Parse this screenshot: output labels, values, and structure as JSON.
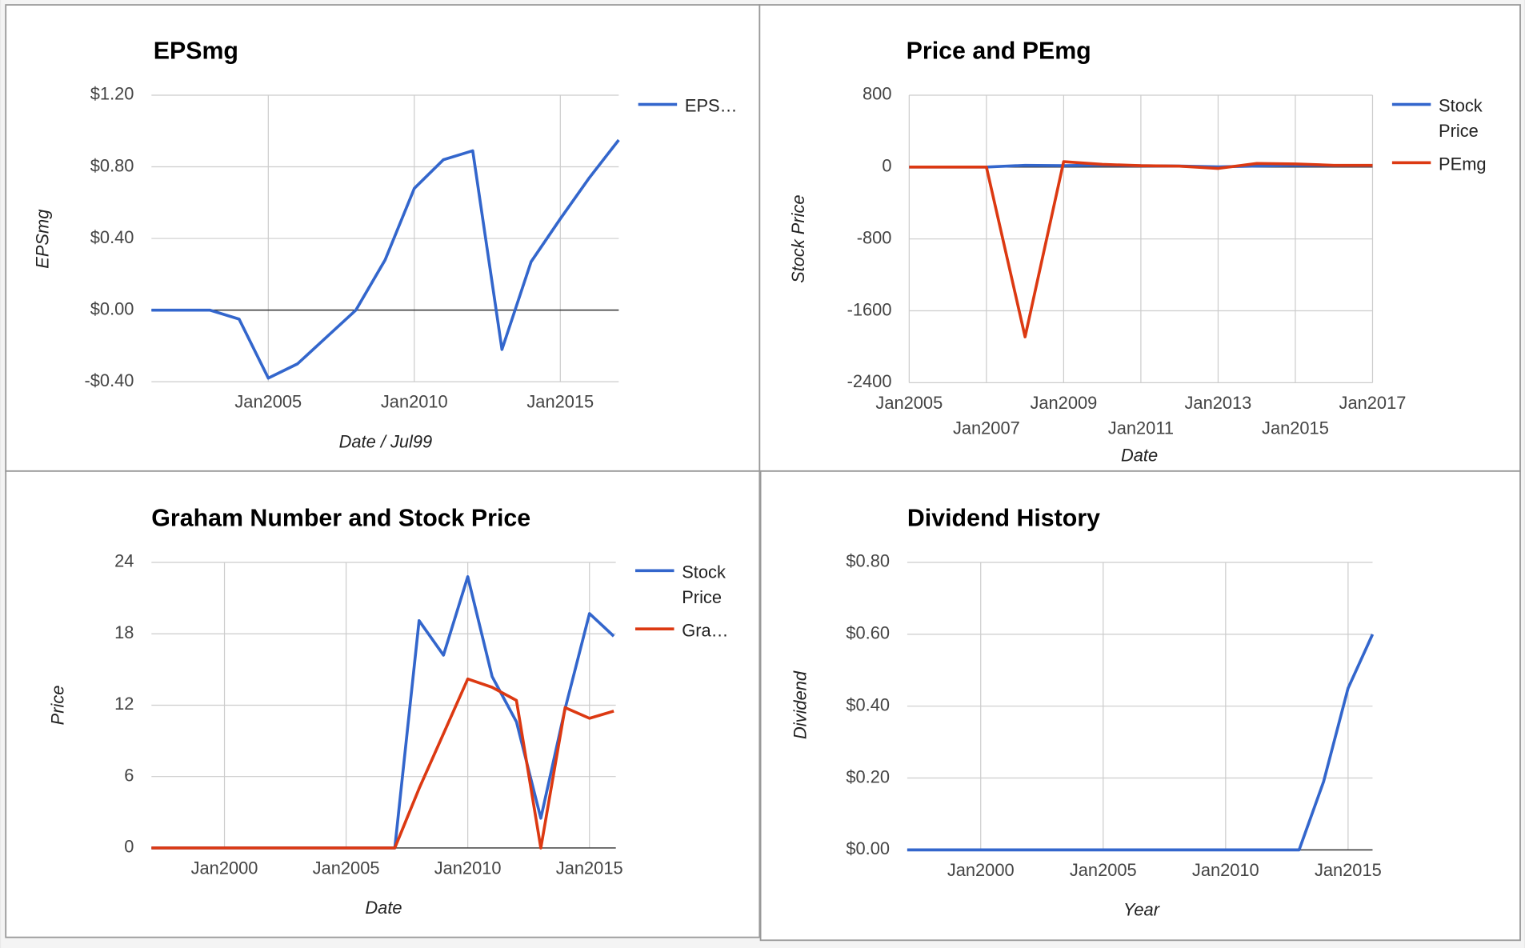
{
  "chart_data": [
    {
      "type": "line",
      "title": "EPSmg",
      "xlabel": "Date / Jul99",
      "ylabel": "EPSmg",
      "x": [
        "2001-01",
        "2002-01",
        "2003-01",
        "2004-01",
        "2005-01",
        "2006-01",
        "2007-01",
        "2008-01",
        "2009-01",
        "2010-01",
        "2011-01",
        "2012-01",
        "2013-01",
        "2014-01",
        "2015-01",
        "2016-01",
        "2017-01"
      ],
      "series": [
        {
          "name": "EPS…",
          "color": "#3366cc",
          "values": [
            0,
            0,
            0,
            -0.05,
            -0.38,
            -0.3,
            -0.15,
            0,
            0.28,
            0.68,
            0.84,
            0.89,
            -0.22,
            0.27,
            0.51,
            0.74,
            0.95
          ]
        }
      ],
      "xlim": [
        "2001-01",
        "2017-01"
      ],
      "xticks": [
        {
          "value": "2005-01",
          "label": "Jan2005"
        },
        {
          "value": "2010-01",
          "label": "Jan2010"
        },
        {
          "value": "2015-01",
          "label": "Jan2015"
        }
      ],
      "ylim": [
        -0.4,
        1.2
      ],
      "yticks": [
        {
          "value": -0.4,
          "label": "-$0.40"
        },
        {
          "value": 0,
          "label": "$0.00"
        },
        {
          "value": 0.4,
          "label": "$0.40"
        },
        {
          "value": 0.8,
          "label": "$0.80"
        },
        {
          "value": 1.2,
          "label": "$1.20"
        }
      ],
      "grid": true,
      "legend": "right"
    },
    {
      "type": "line",
      "title": "Price and PEmg",
      "xlabel": "Date",
      "ylabel": "Stock Price",
      "x": [
        "2005-01",
        "2006-01",
        "2007-01",
        "2008-01",
        "2009-01",
        "2010-01",
        "2011-01",
        "2012-01",
        "2013-01",
        "2014-01",
        "2015-01",
        "2016-01",
        "2017-01"
      ],
      "series": [
        {
          "name": "Stock Price",
          "color": "#3366cc",
          "values": [
            0,
            0,
            0,
            19.1,
            16.2,
            22.8,
            14.4,
            10.6,
            2.5,
            11.7,
            19.7,
            17.8,
            17.8
          ]
        },
        {
          "name": "PEmg",
          "color": "#dc3912",
          "values": [
            0,
            0,
            0,
            -1890,
            60,
            30,
            15,
            10,
            -15,
            40,
            35,
            20,
            20
          ]
        }
      ],
      "xlim": [
        "2005-01",
        "2017-01"
      ],
      "xticks": [
        {
          "value": "2005-01",
          "label": "Jan2005"
        },
        {
          "value": "2007-01",
          "label": "Jan2007"
        },
        {
          "value": "2009-01",
          "label": "Jan2009"
        },
        {
          "value": "2011-01",
          "label": "Jan2011"
        },
        {
          "value": "2013-01",
          "label": "Jan2013"
        },
        {
          "value": "2015-01",
          "label": "Jan2015"
        },
        {
          "value": "2017-01",
          "label": "Jan2017"
        }
      ],
      "ylim": [
        -2400,
        800
      ],
      "yticks": [
        -2400,
        -1600,
        -800,
        0,
        800
      ],
      "grid": true,
      "legend": "right"
    },
    {
      "type": "line",
      "title": "Graham Number and Stock Price",
      "xlabel": "Date",
      "ylabel": "Price",
      "x": [
        "1997-01",
        "1998-01",
        "1999-01",
        "2000-01",
        "2001-01",
        "2002-01",
        "2003-01",
        "2004-01",
        "2005-01",
        "2006-01",
        "2007-01",
        "2008-01",
        "2009-01",
        "2010-01",
        "2011-01",
        "2012-01",
        "2013-01",
        "2014-01",
        "2015-01",
        "2016-01"
      ],
      "series": [
        {
          "name": "Stock Price",
          "color": "#3366cc",
          "values": [
            0,
            0,
            0,
            0,
            0,
            0,
            0,
            0,
            0,
            0,
            0,
            19.1,
            16.2,
            22.8,
            14.4,
            10.6,
            2.5,
            11.7,
            19.7,
            17.8
          ]
        },
        {
          "name": "Gra…",
          "color": "#dc3912",
          "values": [
            0,
            0,
            0,
            0,
            0,
            0,
            0,
            0,
            0,
            0,
            0,
            5,
            9.6,
            14.2,
            13.5,
            12.4,
            0,
            11.8,
            10.9,
            11.5
          ]
        }
      ],
      "xlim": [
        "1997-01",
        "2016-02"
      ],
      "xticks": [
        {
          "value": "2000-01",
          "label": "Jan2000"
        },
        {
          "value": "2005-01",
          "label": "Jan2005"
        },
        {
          "value": "2010-01",
          "label": "Jan2010"
        },
        {
          "value": "2015-01",
          "label": "Jan2015"
        }
      ],
      "ylim": [
        0,
        24
      ],
      "yticks": [
        0,
        6,
        12,
        18,
        24
      ],
      "grid": true,
      "legend": "right"
    },
    {
      "type": "line",
      "title": "Dividend History",
      "xlabel": "Year",
      "ylabel": "Dividend",
      "x": [
        "1997-01",
        "1998-01",
        "1999-01",
        "2000-01",
        "2001-01",
        "2002-01",
        "2003-01",
        "2004-01",
        "2005-01",
        "2006-01",
        "2007-01",
        "2008-01",
        "2009-01",
        "2010-01",
        "2011-01",
        "2012-01",
        "2013-01",
        "2014-01",
        "2015-01",
        "2016-01"
      ],
      "series": [
        {
          "name": "Dividend",
          "color": "#3366cc",
          "values": [
            0,
            0,
            0,
            0,
            0,
            0,
            0,
            0,
            0,
            0,
            0,
            0,
            0,
            0,
            0,
            0,
            0,
            0.19,
            0.45,
            0.6
          ]
        }
      ],
      "xlim": [
        "1997-01",
        "2016-01"
      ],
      "xticks": [
        {
          "value": "2000-01",
          "label": "Jan2000"
        },
        {
          "value": "2005-01",
          "label": "Jan2005"
        },
        {
          "value": "2010-01",
          "label": "Jan2010"
        },
        {
          "value": "2015-01",
          "label": "Jan2015"
        }
      ],
      "ylim": [
        0,
        0.8
      ],
      "yticks": [
        {
          "value": 0,
          "label": "$0.00"
        },
        {
          "value": 0.2,
          "label": "$0.20"
        },
        {
          "value": 0.4,
          "label": "$0.40"
        },
        {
          "value": 0.6,
          "label": "$0.60"
        },
        {
          "value": 0.8,
          "label": "$0.80"
        }
      ],
      "grid": true,
      "legend": "none"
    }
  ]
}
